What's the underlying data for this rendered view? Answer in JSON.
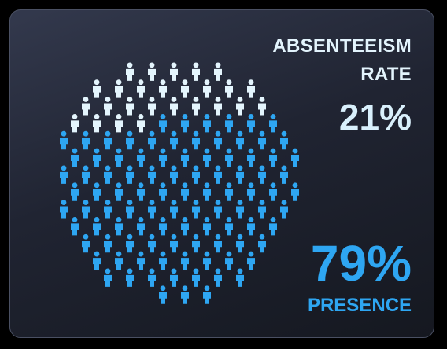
{
  "absenteeism": {
    "label_line1": "ABSENTEEISM",
    "label_line2": "RATE",
    "value_text": "21%",
    "fraction": 0.21
  },
  "presence": {
    "value_text": "79%",
    "label": "PRESENCE",
    "fraction": 0.79
  },
  "colors": {
    "absent": "#e4f5fd",
    "present": "#2ea6f2",
    "background": "#1c2030"
  },
  "icon": "person-icon"
}
